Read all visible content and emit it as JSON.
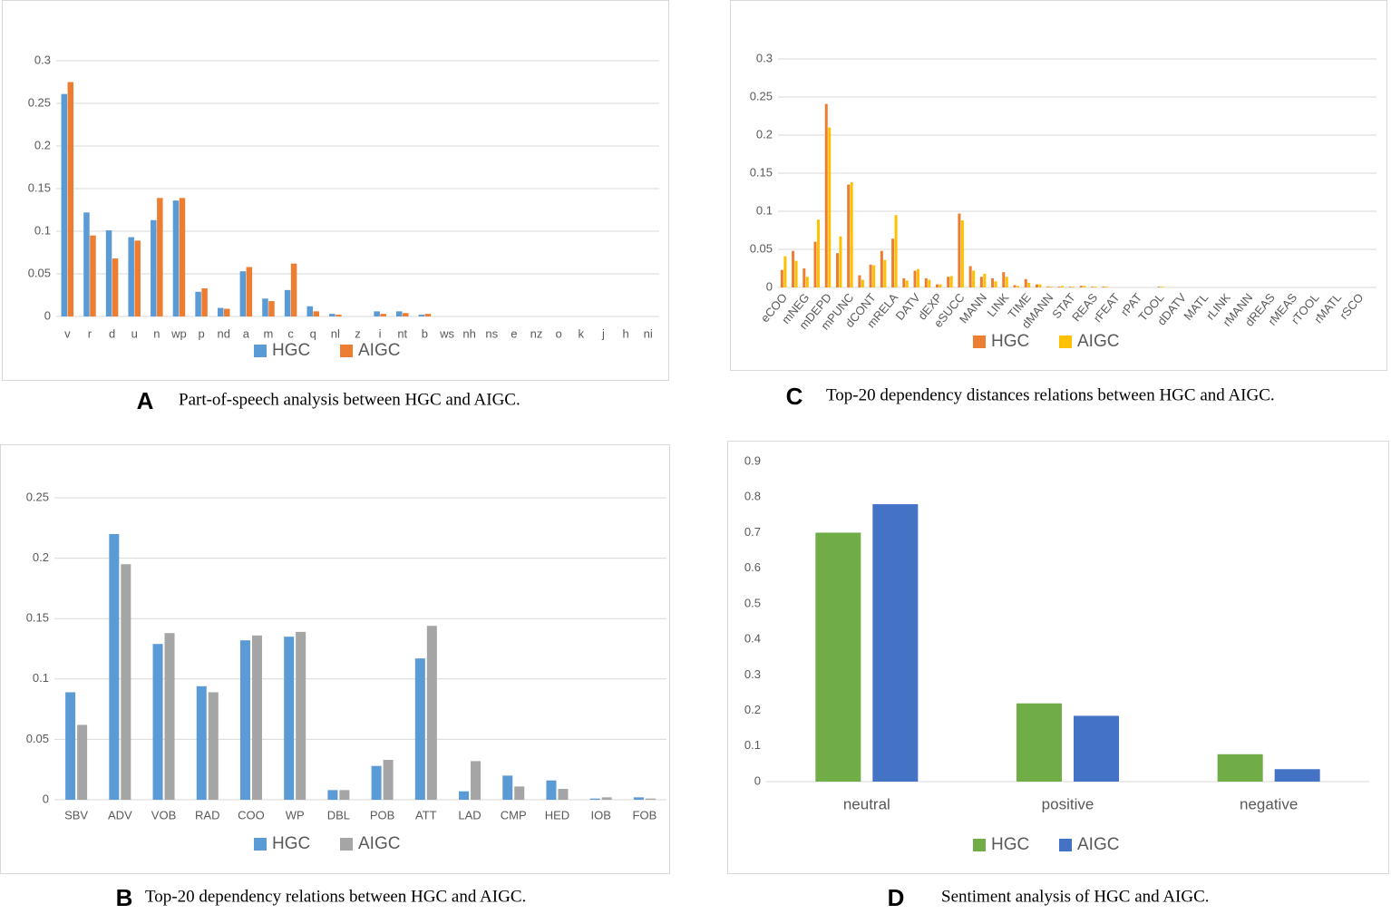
{
  "chart_data": [
    {
      "type": "bar",
      "panel": "A",
      "caption": "Part-of-speech analysis between HGC and AIGC.",
      "categories": [
        "v",
        "r",
        "d",
        "u",
        "n",
        "wp",
        "p",
        "nd",
        "a",
        "m",
        "c",
        "q",
        "nl",
        "z",
        "i",
        "nt",
        "b",
        "ws",
        "nh",
        "ns",
        "e",
        "nz",
        "o",
        "k",
        "j",
        "h",
        "ni"
      ],
      "series": [
        {
          "name": "HGC",
          "color": "#5b9bd5",
          "values": [
            0.261,
            0.122,
            0.101,
            0.093,
            0.113,
            0.136,
            0.029,
            0.01,
            0.053,
            0.021,
            0.031,
            0.012,
            0.003,
            0,
            0.006,
            0.006,
            0.002,
            0,
            0,
            0,
            0,
            0,
            0,
            0,
            0,
            0,
            0
          ]
        },
        {
          "name": "AIGC",
          "color": "#ed7d31",
          "values": [
            0.275,
            0.095,
            0.068,
            0.089,
            0.139,
            0.139,
            0.033,
            0.009,
            0.058,
            0.018,
            0.062,
            0.006,
            0.002,
            0,
            0.003,
            0.004,
            0.003,
            0,
            0,
            0,
            0,
            0,
            0,
            0,
            0,
            0,
            0
          ]
        }
      ],
      "ylim": [
        0,
        0.3
      ],
      "yticks": [
        0,
        0.05,
        0.1,
        0.15,
        0.2,
        0.25,
        0.3
      ],
      "grid": true,
      "legend": "bottom"
    },
    {
      "type": "bar",
      "panel": "C",
      "caption": "Top-20 dependency distances relations between HGC and AIGC.",
      "categories": [
        "eCOO",
        null,
        "mNEG",
        null,
        "mDEPD",
        null,
        "mPUNC",
        null,
        "dCONT",
        null,
        "mRELA",
        null,
        "DATV",
        null,
        "dEXP",
        null,
        "eSUCC",
        null,
        "MANN",
        null,
        "LINK",
        null,
        "TIME",
        null,
        "dMANN",
        null,
        "STAT",
        null,
        "REAS",
        null,
        "rFEAT",
        null,
        "rPAT",
        null,
        "TOOL",
        null,
        "dDATV",
        null,
        "MATL",
        null,
        "rLINK",
        null,
        "rMANN",
        null,
        "dREAS",
        null,
        "rMEAS",
        null,
        "rTOOL",
        null,
        "rMATL",
        null,
        "rSCO",
        null
      ],
      "series": [
        {
          "name": "HGC",
          "color": "#ed7d31",
          "values": [
            0.023,
            0.048,
            0.025,
            0.06,
            0.241,
            0.045,
            0.135,
            0.016,
            0.03,
            0.048,
            0.064,
            0.012,
            0.022,
            0.012,
            0.004,
            0.014,
            0.097,
            0.028,
            0.014,
            0.012,
            0.02,
            0.003,
            0.011,
            0.004,
            0.001,
            0.001,
            0.001,
            0.002,
            0.001,
            0.001,
            0,
            0,
            0,
            0,
            0.001,
            0,
            0,
            0,
            0,
            0,
            0,
            0,
            0,
            0,
            0,
            0,
            0,
            0,
            0,
            0,
            0,
            0,
            0,
            0
          ]
        },
        {
          "name": "AIGC",
          "color": "#ffc000",
          "values": [
            0.041,
            0.035,
            0.014,
            0.089,
            0.21,
            0.067,
            0.138,
            0.01,
            0.029,
            0.036,
            0.095,
            0.009,
            0.024,
            0.01,
            0.004,
            0.015,
            0.088,
            0.022,
            0.018,
            0.008,
            0.014,
            0.002,
            0.006,
            0.004,
            0.001,
            0.002,
            0.001,
            0.002,
            0.001,
            0.001,
            0,
            0,
            0,
            0,
            0.001,
            0,
            0,
            0,
            0,
            0,
            0,
            0,
            0,
            0,
            0,
            0,
            0,
            0,
            0,
            0,
            0,
            0,
            0,
            0
          ]
        }
      ],
      "ylim": [
        0,
        0.3
      ],
      "yticks": [
        0,
        0.05,
        0.1,
        0.15,
        0.2,
        0.25,
        0.3
      ],
      "grid": true,
      "legend": "bottom"
    },
    {
      "type": "bar",
      "panel": "B",
      "caption": "Top-20 dependency relations between HGC and AIGC.",
      "categories": [
        "SBV",
        "ADV",
        "VOB",
        "RAD",
        "COO",
        "WP",
        "DBL",
        "POB",
        "ATT",
        "LAD",
        "CMP",
        "HED",
        "IOB",
        "FOB"
      ],
      "series": [
        {
          "name": "HGC",
          "color": "#5b9bd5",
          "values": [
            0.089,
            0.22,
            0.129,
            0.094,
            0.132,
            0.135,
            0.008,
            0.028,
            0.117,
            0.007,
            0.02,
            0.016,
            0.001,
            0.002
          ]
        },
        {
          "name": "AIGC",
          "color": "#a5a5a5",
          "values": [
            0.062,
            0.195,
            0.138,
            0.089,
            0.136,
            0.139,
            0.008,
            0.033,
            0.144,
            0.032,
            0.011,
            0.009,
            0.002,
            0.001
          ]
        }
      ],
      "ylim": [
        0,
        0.25
      ],
      "yticks": [
        0,
        0.05,
        0.1,
        0.15,
        0.2,
        0.25
      ],
      "grid": true,
      "legend": "bottom"
    },
    {
      "type": "bar",
      "panel": "D",
      "caption": "Sentiment analysis of HGC and AIGC.",
      "categories": [
        "neutral",
        "positive",
        "negative"
      ],
      "series": [
        {
          "name": "HGC",
          "color": "#70ad47",
          "values": [
            0.7,
            0.22,
            0.077
          ]
        },
        {
          "name": "AIGC",
          "color": "#4472c4",
          "values": [
            0.78,
            0.185,
            0.035
          ]
        }
      ],
      "ylim": [
        0,
        0.9
      ],
      "yticks": [
        0,
        0.1,
        0.2,
        0.3,
        0.4,
        0.5,
        0.6,
        0.7,
        0.8,
        0.9
      ],
      "grid": false,
      "legend": "bottom"
    }
  ]
}
